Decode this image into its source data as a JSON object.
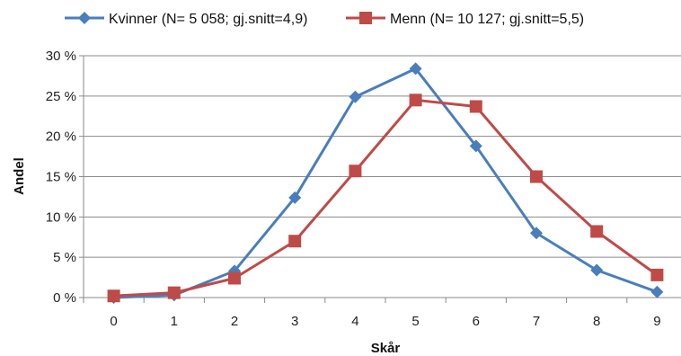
{
  "chart_data": {
    "type": "line",
    "xlabel": "Skår",
    "ylabel": "Andel",
    "x": [
      0,
      1,
      2,
      3,
      4,
      5,
      6,
      7,
      8,
      9
    ],
    "x_tick_labels": [
      "0",
      "1",
      "2",
      "3",
      "4",
      "5",
      "6",
      "7",
      "8",
      "9"
    ],
    "ylim": [
      0,
      30
    ],
    "y_ticks": [
      0,
      5,
      10,
      15,
      20,
      25,
      30
    ],
    "y_tick_labels": [
      "0 %",
      "5 %",
      "10 %",
      "15 %",
      "20 %",
      "25 %",
      "30 %"
    ],
    "grid": true,
    "legend_position": "top",
    "series": [
      {
        "name": "Kvinner (N= 5 058; gj.snitt=4,9)",
        "color": "#4a7ebb",
        "marker": "diamond",
        "values": [
          0.0,
          0.3,
          3.3,
          12.4,
          24.9,
          28.4,
          18.8,
          8.0,
          3.4,
          0.7
        ]
      },
      {
        "name": "Menn (N= 10 127; gj.snitt=5,5)",
        "color": "#be4b48",
        "marker": "square",
        "values": [
          0.2,
          0.6,
          2.4,
          7.0,
          15.7,
          24.5,
          23.7,
          15.0,
          8.2,
          2.8
        ]
      }
    ]
  }
}
